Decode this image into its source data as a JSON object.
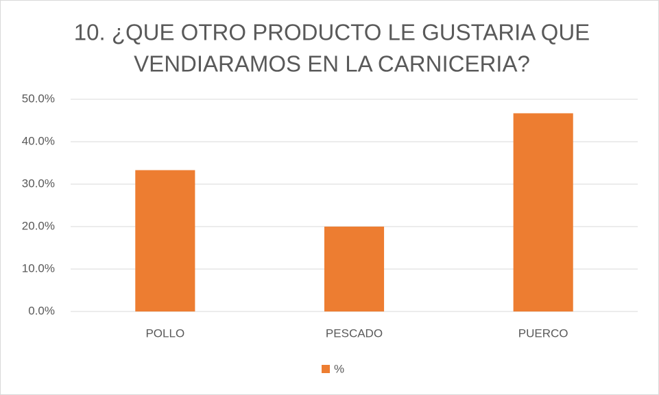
{
  "chart_data": {
    "type": "bar",
    "title": [
      "10. ¿QUE OTRO PRODUCTO LE GUSTARIA QUE",
      "VENDIARAMOS EN LA CARNICERIA?"
    ],
    "categories": [
      "POLLO",
      "PESCADO",
      "PUERCO"
    ],
    "series": [
      {
        "name": "%",
        "color": "#ed7d31",
        "values": [
          33.3,
          20,
          46.7
        ]
      }
    ],
    "ylim": [
      0,
      50
    ],
    "yticks": [
      {
        "value": 0,
        "label": "0.0%"
      },
      {
        "value": 10,
        "label": "10.0%"
      },
      {
        "value": 20,
        "label": "20.0%"
      },
      {
        "value": 30,
        "label": "30.0%"
      },
      {
        "value": 40,
        "label": "40.0%"
      },
      {
        "value": 50,
        "label": "50.0%"
      }
    ],
    "grid": true,
    "legend": "bottom"
  }
}
